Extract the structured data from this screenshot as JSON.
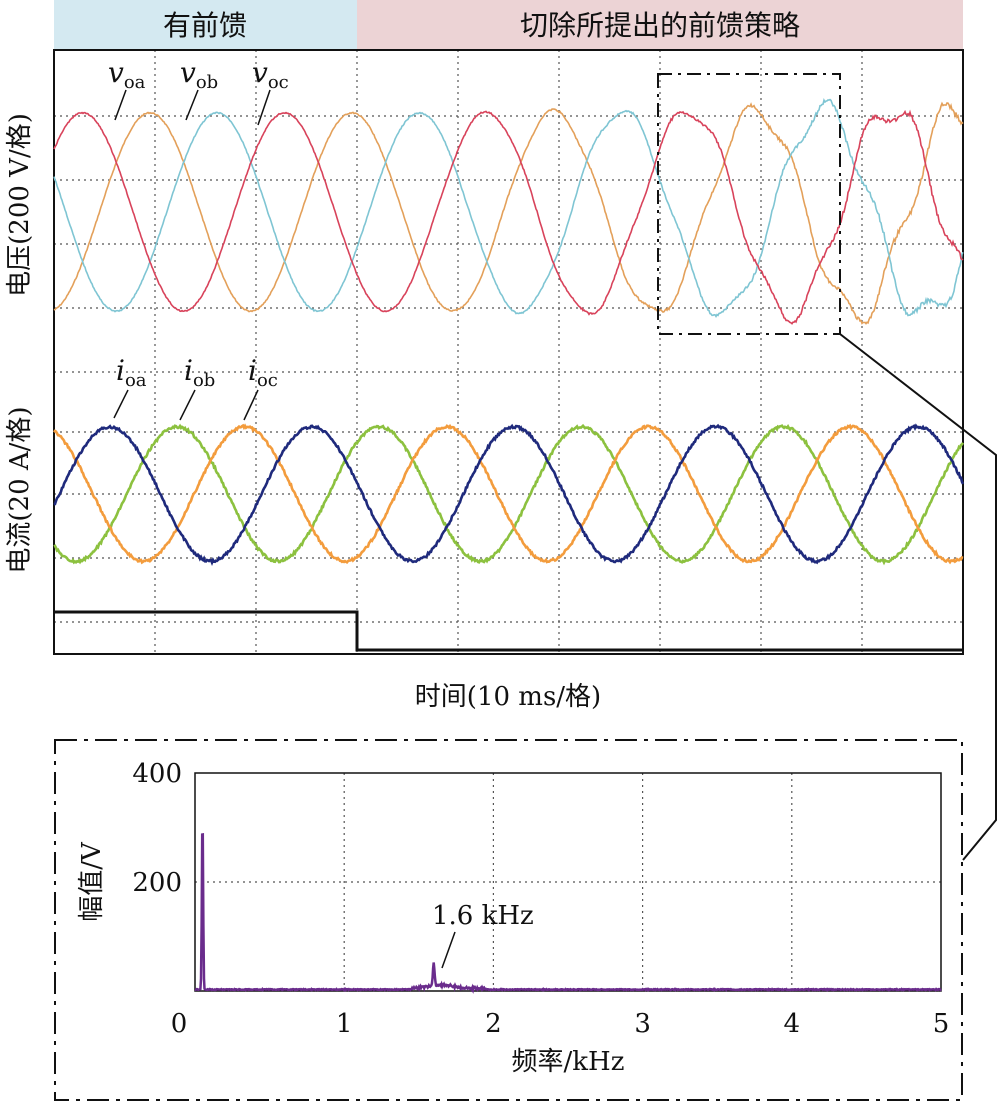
{
  "colors": {
    "feedforward_band": "#d4e9f1",
    "removed_band": "#ecd3d5",
    "v_a": "#e3a05a",
    "v_b": "#7fc5d3",
    "v_c": "#d8435b",
    "i_a": "#8cc13f",
    "i_b": "#f39c3d",
    "i_c": "#1f2a7c",
    "spectrum": "#6a2c8c",
    "grid": "#555555"
  },
  "chart_data": [
    {
      "type": "line",
      "subject": "oscilloscope waveforms",
      "segments": [
        {
          "label": "有前馈",
          "x_divisions": [
            0,
            3
          ]
        },
        {
          "label": "切除所提出的前馈策略",
          "x_divisions": [
            3,
            9
          ]
        }
      ],
      "xlabel": "时间(10 ms/格)",
      "x_divisions": 9,
      "voltage": {
        "ylabel": "电压(200 V/格)",
        "series": [
          {
            "name": "v",
            "sub": "oa"
          },
          {
            "name": "v",
            "sub": "ob"
          },
          {
            "name": "v",
            "sub": "oc"
          }
        ],
        "amplitude_divisions": 1.55,
        "frequency_hz": 50,
        "ripple_hz_after_removal": 1600,
        "zoom_box": {
          "x_divisions": [
            6.0,
            7.8
          ],
          "note": "dash-dot box"
        }
      },
      "current": {
        "ylabel": "电流(20 A/格)",
        "series": [
          {
            "name": "i",
            "sub": "oa"
          },
          {
            "name": "i",
            "sub": "ob"
          },
          {
            "name": "i",
            "sub": "oc"
          }
        ],
        "amplitude_divisions": 1.05,
        "frequency_hz": 50
      },
      "control_signal": {
        "high_until_division": 3.0
      }
    },
    {
      "type": "line",
      "subject": "FFT spectrum",
      "xlabel": "频率/kHz",
      "ylabel": "幅值/V",
      "xlim": [
        0,
        5
      ],
      "ylim": [
        0,
        400
      ],
      "x_ticks": [
        "0",
        "1",
        "2",
        "3",
        "4",
        "5"
      ],
      "y_ticks": [
        "200",
        "400"
      ],
      "peaks": [
        {
          "x": 0.05,
          "y": 318
        },
        {
          "x": 1.6,
          "y": 40,
          "label": "1.6 kHz"
        }
      ],
      "grid": true
    }
  ]
}
